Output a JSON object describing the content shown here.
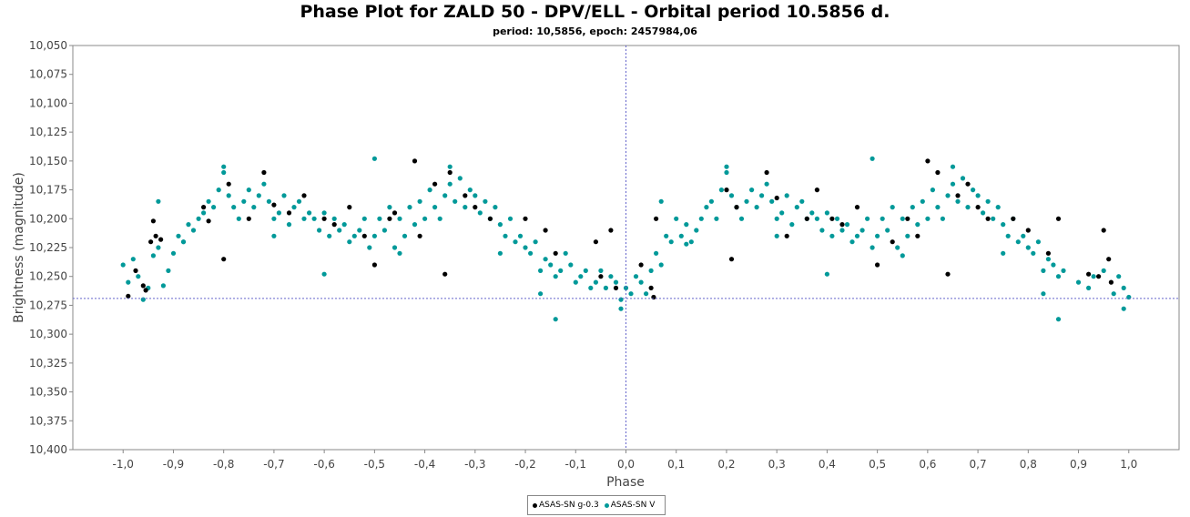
{
  "chart_data": {
    "type": "scatter",
    "title": "Phase Plot for ZALD 50 - DPV/ELL - Orbital period 10.5856 d.",
    "subtitle": "period: 10,5856, epoch: 2457984,06",
    "xlabel": "Phase",
    "ylabel": "Brightness (magnitude)",
    "xlim": [
      -1.1,
      1.1
    ],
    "ylim": [
      10.4,
      10.05
    ],
    "y_inverted": true,
    "x_ticks": [
      "-1,0",
      "-0,9",
      "-0,8",
      "-0,7",
      "-0,6",
      "-0,5",
      "-0,4",
      "-0,3",
      "-0,2",
      "-0,1",
      "0,0",
      "0,1",
      "0,2",
      "0,3",
      "0,4",
      "0,5",
      "0,6",
      "0,7",
      "0,8",
      "0,9",
      "1,0"
    ],
    "x_tick_values": [
      -1.0,
      -0.9,
      -0.8,
      -0.7,
      -0.6,
      -0.5,
      -0.4,
      -0.3,
      -0.2,
      -0.1,
      0.0,
      0.1,
      0.2,
      0.3,
      0.4,
      0.5,
      0.6,
      0.7,
      0.8,
      0.9,
      1.0
    ],
    "y_ticks": [
      "10,050",
      "10,075",
      "10,100",
      "10,125",
      "10,150",
      "10,175",
      "10,200",
      "10,225",
      "10,250",
      "10,275",
      "10,300",
      "10,325",
      "10,350",
      "10,375",
      "10,400"
    ],
    "y_tick_values": [
      10.05,
      10.075,
      10.1,
      10.125,
      10.15,
      10.175,
      10.2,
      10.225,
      10.25,
      10.275,
      10.3,
      10.325,
      10.35,
      10.375,
      10.4
    ],
    "crosshair": {
      "x": 0.0,
      "y": 10.269
    },
    "legend_position": "bottom-center",
    "series": [
      {
        "name": "ASAS-SN g-0.3",
        "color": "#000000",
        "points": [
          [
            -0.99,
            10.267
          ],
          [
            -0.975,
            10.245
          ],
          [
            -0.96,
            10.258
          ],
          [
            -0.955,
            10.262
          ],
          [
            -0.945,
            10.22
          ],
          [
            -0.94,
            10.202
          ],
          [
            -0.935,
            10.215
          ],
          [
            -0.925,
            10.218
          ],
          [
            -0.84,
            10.19
          ],
          [
            -0.83,
            10.202
          ],
          [
            -0.8,
            10.235
          ],
          [
            -0.79,
            10.17
          ],
          [
            -0.75,
            10.2
          ],
          [
            -0.72,
            10.16
          ],
          [
            -0.7,
            10.188
          ],
          [
            -0.67,
            10.195
          ],
          [
            -0.64,
            10.18
          ],
          [
            -0.6,
            10.2
          ],
          [
            -0.58,
            10.205
          ],
          [
            -0.55,
            10.19
          ],
          [
            -0.52,
            10.215
          ],
          [
            -0.5,
            10.24
          ],
          [
            -0.47,
            10.2
          ],
          [
            -0.46,
            10.195
          ],
          [
            -0.42,
            10.15
          ],
          [
            -0.41,
            10.215
          ],
          [
            -0.38,
            10.17
          ],
          [
            -0.36,
            10.248
          ],
          [
            -0.35,
            10.16
          ],
          [
            -0.32,
            10.18
          ],
          [
            -0.3,
            10.19
          ],
          [
            -0.27,
            10.2
          ],
          [
            -0.2,
            10.2
          ],
          [
            -0.16,
            10.21
          ],
          [
            -0.14,
            10.23
          ],
          [
            -0.06,
            10.22
          ],
          [
            -0.05,
            10.25
          ],
          [
            -0.03,
            10.21
          ],
          [
            -0.02,
            10.26
          ],
          [
            0.03,
            10.24
          ],
          [
            0.05,
            10.26
          ],
          [
            0.06,
            10.2
          ],
          [
            0.055,
            10.268
          ],
          [
            0.2,
            10.175
          ],
          [
            0.21,
            10.235
          ],
          [
            0.22,
            10.19
          ],
          [
            0.28,
            10.16
          ],
          [
            0.3,
            10.182
          ],
          [
            0.32,
            10.215
          ],
          [
            0.36,
            10.2
          ],
          [
            0.38,
            10.175
          ],
          [
            0.41,
            10.2
          ],
          [
            0.43,
            10.205
          ],
          [
            0.46,
            10.19
          ],
          [
            0.5,
            10.24
          ],
          [
            0.53,
            10.22
          ],
          [
            0.56,
            10.2
          ],
          [
            0.58,
            10.215
          ],
          [
            0.6,
            10.15
          ],
          [
            0.62,
            10.16
          ],
          [
            0.64,
            10.248
          ],
          [
            0.66,
            10.18
          ],
          [
            0.68,
            10.17
          ],
          [
            0.7,
            10.19
          ],
          [
            0.72,
            10.2
          ],
          [
            0.77,
            10.2
          ],
          [
            0.8,
            10.21
          ],
          [
            0.84,
            10.23
          ],
          [
            0.86,
            10.2
          ],
          [
            0.92,
            10.248
          ],
          [
            0.94,
            10.25
          ],
          [
            0.95,
            10.21
          ],
          [
            0.96,
            10.235
          ],
          [
            0.965,
            10.255
          ]
        ]
      },
      {
        "name": "ASAS-SN V",
        "color": "#009999",
        "points": [
          [
            -1.0,
            10.24
          ],
          [
            -0.99,
            10.255
          ],
          [
            -0.98,
            10.235
          ],
          [
            -0.97,
            10.25
          ],
          [
            -0.96,
            10.27
          ],
          [
            -0.95,
            10.26
          ],
          [
            -0.94,
            10.232
          ],
          [
            -0.93,
            10.225
          ],
          [
            -0.92,
            10.258
          ],
          [
            -0.91,
            10.245
          ],
          [
            -0.9,
            10.23
          ],
          [
            -0.89,
            10.215
          ],
          [
            -0.88,
            10.22
          ],
          [
            -0.87,
            10.205
          ],
          [
            -0.86,
            10.21
          ],
          [
            -0.85,
            10.2
          ],
          [
            -0.84,
            10.195
          ],
          [
            -0.83,
            10.185
          ],
          [
            -0.82,
            10.19
          ],
          [
            -0.81,
            10.175
          ],
          [
            -0.8,
            10.16
          ],
          [
            -0.79,
            10.18
          ],
          [
            -0.78,
            10.19
          ],
          [
            -0.77,
            10.2
          ],
          [
            -0.76,
            10.185
          ],
          [
            -0.75,
            10.175
          ],
          [
            -0.74,
            10.19
          ],
          [
            -0.73,
            10.18
          ],
          [
            -0.72,
            10.17
          ],
          [
            -0.71,
            10.185
          ],
          [
            -0.7,
            10.2
          ],
          [
            -0.69,
            10.195
          ],
          [
            -0.68,
            10.18
          ],
          [
            -0.67,
            10.205
          ],
          [
            -0.66,
            10.19
          ],
          [
            -0.65,
            10.185
          ],
          [
            -0.64,
            10.2
          ],
          [
            -0.63,
            10.195
          ],
          [
            -0.62,
            10.2
          ],
          [
            -0.61,
            10.21
          ],
          [
            -0.6,
            10.195
          ],
          [
            -0.59,
            10.215
          ],
          [
            -0.58,
            10.2
          ],
          [
            -0.57,
            10.21
          ],
          [
            -0.56,
            10.205
          ],
          [
            -0.55,
            10.22
          ],
          [
            -0.54,
            10.215
          ],
          [
            -0.53,
            10.21
          ],
          [
            -0.52,
            10.2
          ],
          [
            -0.51,
            10.225
          ],
          [
            -0.5,
            10.215
          ],
          [
            -0.49,
            10.2
          ],
          [
            -0.48,
            10.21
          ],
          [
            -0.47,
            10.19
          ],
          [
            -0.46,
            10.225
          ],
          [
            -0.45,
            10.2
          ],
          [
            -0.44,
            10.215
          ],
          [
            -0.43,
            10.19
          ],
          [
            -0.42,
            10.205
          ],
          [
            -0.41,
            10.185
          ],
          [
            -0.4,
            10.2
          ],
          [
            -0.39,
            10.175
          ],
          [
            -0.38,
            10.19
          ],
          [
            -0.37,
            10.2
          ],
          [
            -0.36,
            10.18
          ],
          [
            -0.35,
            10.17
          ],
          [
            -0.34,
            10.185
          ],
          [
            -0.33,
            10.165
          ],
          [
            -0.32,
            10.19
          ],
          [
            -0.31,
            10.175
          ],
          [
            -0.3,
            10.18
          ],
          [
            -0.29,
            10.195
          ],
          [
            -0.28,
            10.185
          ],
          [
            -0.27,
            10.2
          ],
          [
            -0.26,
            10.19
          ],
          [
            -0.25,
            10.205
          ],
          [
            -0.24,
            10.215
          ],
          [
            -0.23,
            10.2
          ],
          [
            -0.22,
            10.22
          ],
          [
            -0.21,
            10.215
          ],
          [
            -0.2,
            10.225
          ],
          [
            -0.19,
            10.23
          ],
          [
            -0.18,
            10.22
          ],
          [
            -0.17,
            10.245
          ],
          [
            -0.16,
            10.235
          ],
          [
            -0.15,
            10.24
          ],
          [
            -0.14,
            10.25
          ],
          [
            -0.13,
            10.245
          ],
          [
            -0.12,
            10.23
          ],
          [
            -0.11,
            10.24
          ],
          [
            -0.1,
            10.255
          ],
          [
            -0.09,
            10.25
          ],
          [
            -0.08,
            10.245
          ],
          [
            -0.07,
            10.26
          ],
          [
            -0.06,
            10.255
          ],
          [
            -0.05,
            10.245
          ],
          [
            -0.04,
            10.26
          ],
          [
            -0.03,
            10.25
          ],
          [
            -0.02,
            10.255
          ],
          [
            -0.01,
            10.27
          ],
          [
            0.0,
            10.26
          ],
          [
            0.01,
            10.265
          ],
          [
            0.02,
            10.25
          ],
          [
            0.03,
            10.255
          ],
          [
            0.04,
            10.265
          ],
          [
            0.05,
            10.245
          ],
          [
            0.06,
            10.23
          ],
          [
            0.07,
            10.24
          ],
          [
            0.08,
            10.215
          ],
          [
            0.09,
            10.22
          ],
          [
            0.1,
            10.2
          ],
          [
            0.11,
            10.215
          ],
          [
            0.12,
            10.205
          ],
          [
            0.13,
            10.22
          ],
          [
            0.14,
            10.21
          ],
          [
            0.15,
            10.2
          ],
          [
            0.16,
            10.19
          ],
          [
            0.17,
            10.185
          ],
          [
            0.18,
            10.2
          ],
          [
            0.19,
            10.175
          ],
          [
            0.2,
            10.16
          ],
          [
            0.21,
            10.18
          ],
          [
            0.22,
            10.19
          ],
          [
            0.23,
            10.2
          ],
          [
            0.24,
            10.185
          ],
          [
            0.25,
            10.175
          ],
          [
            0.26,
            10.19
          ],
          [
            0.27,
            10.18
          ],
          [
            0.28,
            10.17
          ],
          [
            0.29,
            10.185
          ],
          [
            0.3,
            10.2
          ],
          [
            0.31,
            10.195
          ],
          [
            0.32,
            10.18
          ],
          [
            0.33,
            10.205
          ],
          [
            0.34,
            10.19
          ],
          [
            0.35,
            10.185
          ],
          [
            0.36,
            10.2
          ],
          [
            0.37,
            10.195
          ],
          [
            0.38,
            10.2
          ],
          [
            0.39,
            10.21
          ],
          [
            0.4,
            10.195
          ],
          [
            0.41,
            10.215
          ],
          [
            0.42,
            10.2
          ],
          [
            0.43,
            10.21
          ],
          [
            0.44,
            10.205
          ],
          [
            0.45,
            10.22
          ],
          [
            0.46,
            10.215
          ],
          [
            0.47,
            10.21
          ],
          [
            0.48,
            10.2
          ],
          [
            0.49,
            10.225
          ],
          [
            0.5,
            10.215
          ],
          [
            0.51,
            10.2
          ],
          [
            0.52,
            10.21
          ],
          [
            0.53,
            10.19
          ],
          [
            0.54,
            10.225
          ],
          [
            0.55,
            10.2
          ],
          [
            0.56,
            10.215
          ],
          [
            0.57,
            10.19
          ],
          [
            0.58,
            10.205
          ],
          [
            0.59,
            10.185
          ],
          [
            0.6,
            10.2
          ],
          [
            0.61,
            10.175
          ],
          [
            0.62,
            10.19
          ],
          [
            0.63,
            10.2
          ],
          [
            0.64,
            10.18
          ],
          [
            0.65,
            10.17
          ],
          [
            0.66,
            10.185
          ],
          [
            0.67,
            10.165
          ],
          [
            0.68,
            10.19
          ],
          [
            0.69,
            10.175
          ],
          [
            0.7,
            10.18
          ],
          [
            0.71,
            10.195
          ],
          [
            0.72,
            10.185
          ],
          [
            0.73,
            10.2
          ],
          [
            0.74,
            10.19
          ],
          [
            0.75,
            10.205
          ],
          [
            0.76,
            10.215
          ],
          [
            0.77,
            10.2
          ],
          [
            0.78,
            10.22
          ],
          [
            0.79,
            10.215
          ],
          [
            0.8,
            10.225
          ],
          [
            0.81,
            10.23
          ],
          [
            0.82,
            10.22
          ],
          [
            0.83,
            10.245
          ],
          [
            0.84,
            10.235
          ],
          [
            0.85,
            10.24
          ],
          [
            0.86,
            10.25
          ],
          [
            0.87,
            10.245
          ],
          [
            0.9,
            10.255
          ],
          [
            0.92,
            10.26
          ],
          [
            0.93,
            10.25
          ],
          [
            0.95,
            10.245
          ],
          [
            0.97,
            10.265
          ],
          [
            0.98,
            10.25
          ],
          [
            0.99,
            10.26
          ],
          [
            1.0,
            10.268
          ],
          [
            -0.14,
            10.287
          ],
          [
            0.86,
            10.287
          ],
          [
            -0.5,
            10.148
          ],
          [
            0.49,
            10.148
          ],
          [
            -0.35,
            10.155
          ],
          [
            0.65,
            10.155
          ],
          [
            -0.8,
            10.155
          ],
          [
            0.2,
            10.155
          ],
          [
            -0.01,
            10.278
          ],
          [
            0.99,
            10.278
          ],
          [
            -0.6,
            10.248
          ],
          [
            0.4,
            10.248
          ],
          [
            -0.88,
            10.22
          ],
          [
            0.12,
            10.222
          ],
          [
            -0.25,
            10.23
          ],
          [
            0.75,
            10.23
          ],
          [
            -0.45,
            10.23
          ],
          [
            0.55,
            10.232
          ],
          [
            -0.7,
            10.215
          ],
          [
            0.3,
            10.215
          ],
          [
            -0.93,
            10.185
          ],
          [
            0.07,
            10.185
          ],
          [
            -0.17,
            10.265
          ],
          [
            0.83,
            10.265
          ]
        ]
      }
    ]
  }
}
